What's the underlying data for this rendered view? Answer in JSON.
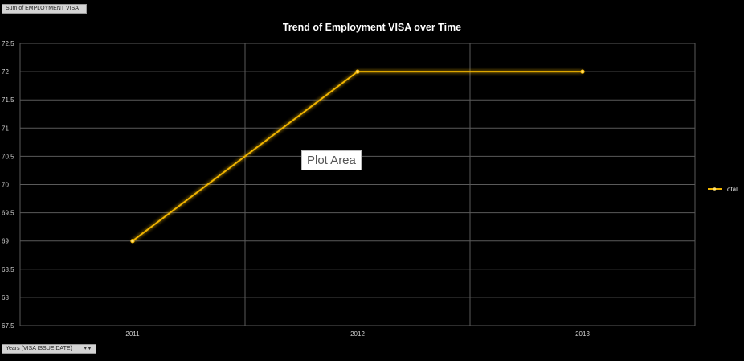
{
  "pivot": {
    "value_field": "Sum of EMPLOYMENT VISA",
    "axis_field": "Years (VISA ISSUE DATE)"
  },
  "tooltip": "Plot Area",
  "colors": {
    "background": "#000000",
    "series_line": "#f0b400",
    "gridline": "#5a5a5a"
  },
  "chart_data": {
    "type": "line",
    "title": "Trend of Employment VISA over Time",
    "categories": [
      "2011",
      "2012",
      "2013"
    ],
    "series": [
      {
        "name": "Total",
        "values": [
          69,
          72,
          72
        ]
      }
    ],
    "ylim": [
      67.5,
      72.5
    ],
    "yticks": [
      "72.5",
      "72",
      "71.5",
      "71",
      "70.5",
      "70",
      "69.5",
      "69",
      "68.5",
      "68",
      "67.5"
    ],
    "xlabel": "",
    "ylabel": "",
    "grid": true,
    "legend": "right"
  }
}
